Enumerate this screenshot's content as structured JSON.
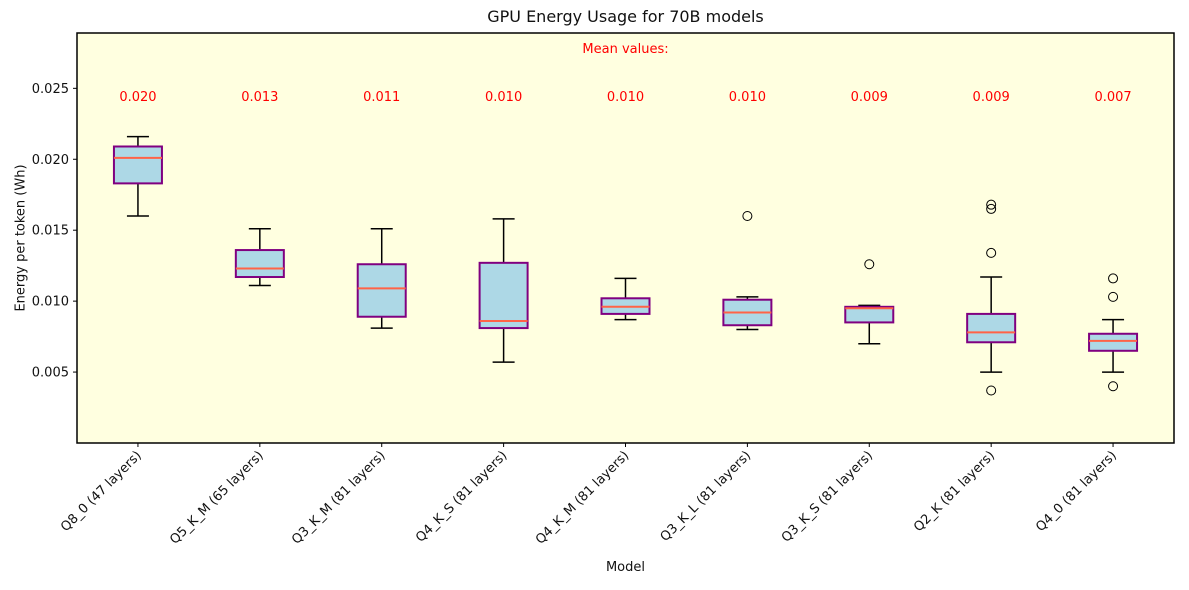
{
  "figure": {
    "title": "GPU Energy Usage for 70B models",
    "xlabel": "Model",
    "ylabel": "Energy per token (Wh)",
    "mean_header": "Mean values:"
  },
  "chart_data": {
    "type": "boxplot",
    "title": "GPU Energy Usage for 70B models",
    "xlabel": "Model",
    "ylabel": "Energy per token (Wh)",
    "annotation_header": "Mean values:",
    "categories": [
      "Q8_0 (47 layers)",
      "Q5_K_M (65 layers)",
      "Q3_K_M (81 layers)",
      "Q4_K_S (81 layers)",
      "Q4_K_M (81 layers)",
      "Q3_K_L (81 layers)",
      "Q3_K_S (81 layers)",
      "Q2_K (81 layers)",
      "Q4_0 (81 layers)"
    ],
    "means": [
      "0.020",
      "0.013",
      "0.011",
      "0.010",
      "0.010",
      "0.010",
      "0.009",
      "0.009",
      "0.007"
    ],
    "boxes": [
      {
        "label": "Q8_0 (47 layers)",
        "whislo": 0.016,
        "q1": 0.0183,
        "med": 0.0201,
        "q3": 0.0209,
        "whishi": 0.0216,
        "fliers": []
      },
      {
        "label": "Q5_K_M (65 layers)",
        "whislo": 0.0111,
        "q1": 0.0117,
        "med": 0.0123,
        "q3": 0.0136,
        "whishi": 0.0151,
        "fliers": []
      },
      {
        "label": "Q3_K_M (81 layers)",
        "whislo": 0.0081,
        "q1": 0.0089,
        "med": 0.0109,
        "q3": 0.0126,
        "whishi": 0.0151,
        "fliers": []
      },
      {
        "label": "Q4_K_S (81 layers)",
        "whislo": 0.0057,
        "q1": 0.0081,
        "med": 0.0086,
        "q3": 0.0127,
        "whishi": 0.0158,
        "fliers": []
      },
      {
        "label": "Q4_K_M (81 layers)",
        "whislo": 0.0087,
        "q1": 0.0091,
        "med": 0.0096,
        "q3": 0.0102,
        "whishi": 0.0116,
        "fliers": []
      },
      {
        "label": "Q3_K_L (81 layers)",
        "whislo": 0.008,
        "q1": 0.0083,
        "med": 0.0092,
        "q3": 0.0101,
        "whishi": 0.0103,
        "fliers": [
          0.016
        ]
      },
      {
        "label": "Q3_K_S (81 layers)",
        "whislo": 0.007,
        "q1": 0.0085,
        "med": 0.0095,
        "q3": 0.0096,
        "whishi": 0.0097,
        "fliers": [
          0.0126
        ]
      },
      {
        "label": "Q2_K (81 layers)",
        "whislo": 0.005,
        "q1": 0.0071,
        "med": 0.0078,
        "q3": 0.0091,
        "whishi": 0.0117,
        "fliers": [
          0.0037,
          0.0134,
          0.0165,
          0.0168
        ]
      },
      {
        "label": "Q4_0 (81 layers)",
        "whislo": 0.005,
        "q1": 0.0065,
        "med": 0.0072,
        "q3": 0.0077,
        "whishi": 0.0087,
        "fliers": [
          0.004,
          0.0103,
          0.0116
        ]
      }
    ],
    "yticks": [
      0.005,
      0.01,
      0.015,
      0.02,
      0.025
    ],
    "ylim": [
      0.0,
      0.0289
    ],
    "grid": false,
    "legend": false,
    "colors": {
      "plot_background": "#FFFFE0",
      "figure_background": "#FFFFFF",
      "box_fill": "#ADD8E6",
      "box_edge": "#800080",
      "median": "#FF6347",
      "whisker": "#000000",
      "cap": "#000000",
      "flier": "#000000",
      "mean_text": "#FF0000",
      "axis_text": "#111111"
    }
  }
}
